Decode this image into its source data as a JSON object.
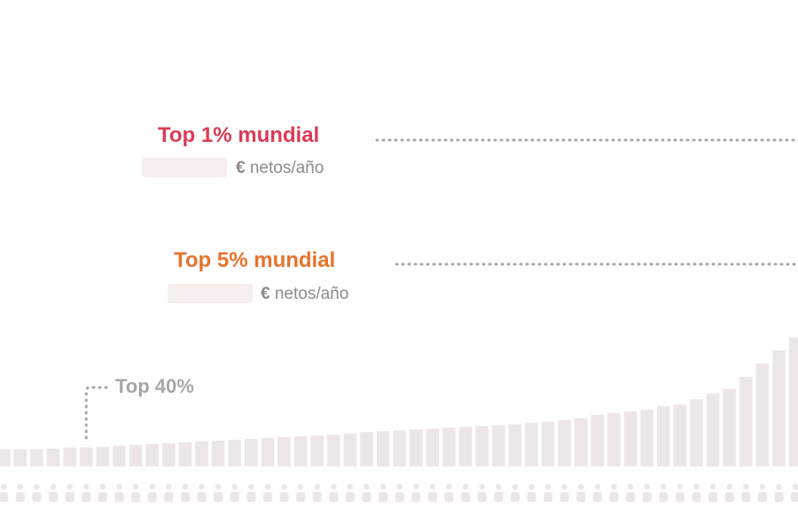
{
  "chart_data": {
    "type": "bar",
    "values": [
      20,
      20,
      20,
      21,
      22,
      22,
      23,
      24,
      25,
      26,
      27,
      28,
      29,
      30,
      31,
      32,
      33,
      34,
      35,
      36,
      37,
      38,
      40,
      41,
      42,
      43,
      44,
      45,
      46,
      47,
      48,
      49,
      51,
      52,
      54,
      56,
      60,
      62,
      64,
      66,
      70,
      72,
      78,
      85,
      90,
      104,
      120,
      135,
      150,
      160,
      190,
      230,
      280,
      335,
      380,
      430,
      460,
      500
    ],
    "ylim": [
      0,
      510
    ],
    "colors": {
      "base": "#ece6e6",
      "top5": "#e8732c",
      "top1": "#db3b55",
      "leader": "#a9a6a7",
      "people_base": "#ece6e6"
    },
    "annotations": [
      {
        "label": "Top 1% mundial",
        "unit_symbol": "€",
        "unit_text": " netos/año",
        "color": "#db3b55"
      },
      {
        "label": "Top 5% mundial",
        "unit_symbol": "€",
        "unit_text": " netos/año",
        "color": "#e8732c"
      },
      {
        "label": "Top 40%",
        "color": "#a9a6a7"
      }
    ]
  }
}
